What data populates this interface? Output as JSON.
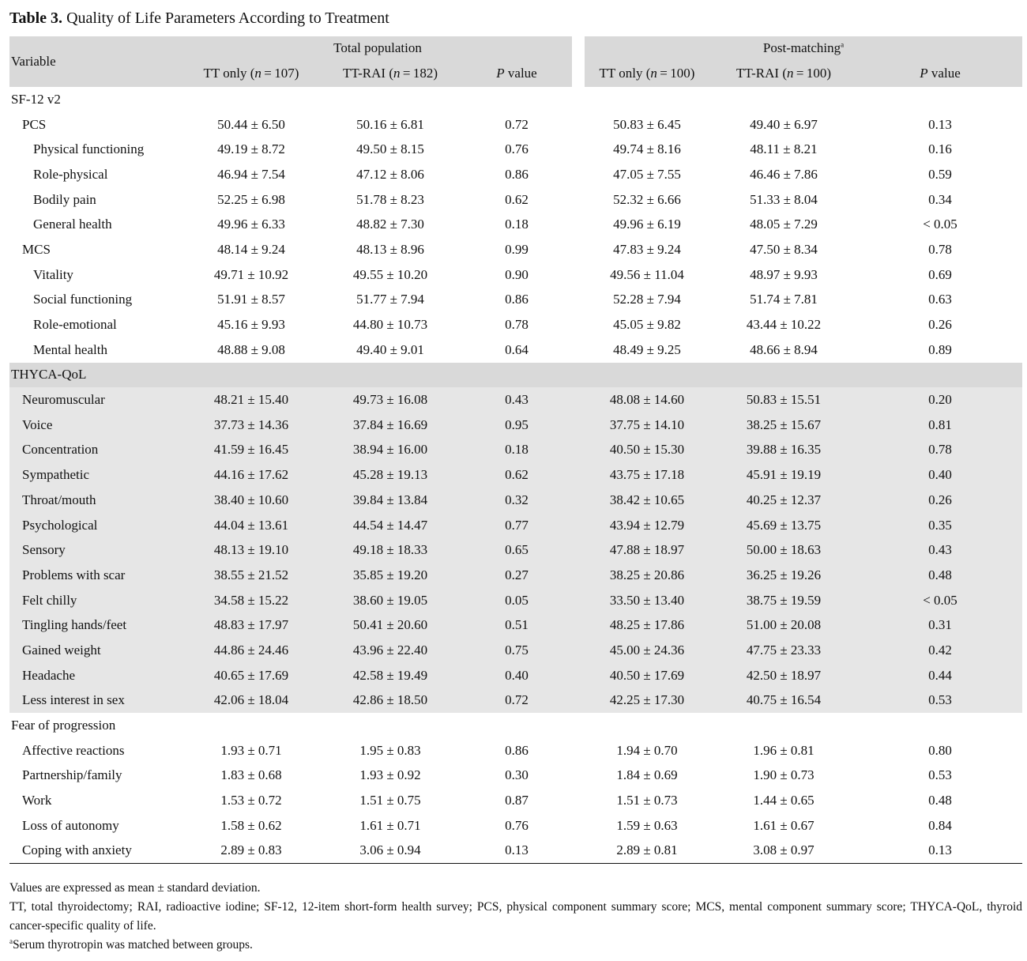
{
  "caption": {
    "label": "Table 3.",
    "title": "Quality of Life Parameters According to Treatment"
  },
  "header": {
    "variable": "Variable",
    "group1": "Total population",
    "group2": "Post-matching",
    "group2_mark": "a",
    "cols": [
      "TT only (n=107)",
      "TT-RAI (n=182)",
      "P value",
      "TT only (n=100)",
      "TT-RAI (n=100)",
      "P value"
    ]
  },
  "rows": [
    {
      "label": "SF-12 v2",
      "level": "section",
      "shade": false,
      "values": [
        "",
        "",
        "",
        "",
        "",
        ""
      ]
    },
    {
      "label": "PCS",
      "level": "l1",
      "shade": false,
      "values": [
        "50.44 ± 6.50",
        "50.16 ± 6.81",
        "0.72",
        "50.83 ± 6.45",
        "49.40 ± 6.97",
        "0.13"
      ]
    },
    {
      "label": "Physical functioning",
      "level": "l2",
      "shade": false,
      "values": [
        "49.19 ± 8.72",
        "49.50 ± 8.15",
        "0.76",
        "49.74 ± 8.16",
        "48.11 ± 8.21",
        "0.16"
      ]
    },
    {
      "label": "Role-physical",
      "level": "l2",
      "shade": false,
      "values": [
        "46.94 ± 7.54",
        "47.12 ± 8.06",
        "0.86",
        "47.05 ± 7.55",
        "46.46 ± 7.86",
        "0.59"
      ]
    },
    {
      "label": "Bodily pain",
      "level": "l2",
      "shade": false,
      "values": [
        "52.25 ± 6.98",
        "51.78 ± 8.23",
        "0.62",
        "52.32 ± 6.66",
        "51.33 ± 8.04",
        "0.34"
      ]
    },
    {
      "label": "General health",
      "level": "l2",
      "shade": false,
      "values": [
        "49.96 ± 6.33",
        "48.82 ± 7.30",
        "0.18",
        "49.96 ± 6.19",
        "48.05 ± 7.29",
        "< 0.05"
      ]
    },
    {
      "label": "MCS",
      "level": "l1",
      "shade": false,
      "values": [
        "48.14 ± 9.24",
        "48.13 ± 8.96",
        "0.99",
        "47.83 ± 9.24",
        "47.50 ± 8.34",
        "0.78"
      ]
    },
    {
      "label": "Vitality",
      "level": "l2",
      "shade": false,
      "values": [
        "49.71 ± 10.92",
        "49.55 ± 10.20",
        "0.90",
        "49.56 ± 11.04",
        "48.97 ± 9.93",
        "0.69"
      ]
    },
    {
      "label": "Social functioning",
      "level": "l2",
      "shade": false,
      "values": [
        "51.91 ± 8.57",
        "51.77 ± 7.94",
        "0.86",
        "52.28 ± 7.94",
        "51.74 ± 7.81",
        "0.63"
      ]
    },
    {
      "label": "Role-emotional",
      "level": "l2",
      "shade": false,
      "values": [
        "45.16 ± 9.93",
        "44.80 ± 10.73",
        "0.78",
        "45.05 ± 9.82",
        "43.44 ± 10.22",
        "0.26"
      ]
    },
    {
      "label": "Mental health",
      "level": "l2",
      "shade": false,
      "values": [
        "48.88 ± 9.08",
        "49.40 ± 9.01",
        "0.64",
        "48.49 ± 9.25",
        "48.66 ± 8.94",
        "0.89"
      ]
    },
    {
      "label": "THYCA-QoL",
      "level": "section",
      "shade": "section",
      "values": [
        "",
        "",
        "",
        "",
        "",
        ""
      ]
    },
    {
      "label": "Neuromuscular",
      "level": "l1",
      "shade": true,
      "values": [
        "48.21 ± 15.40",
        "49.73 ± 16.08",
        "0.43",
        "48.08 ± 14.60",
        "50.83 ± 15.51",
        "0.20"
      ]
    },
    {
      "label": "Voice",
      "level": "l1",
      "shade": true,
      "values": [
        "37.73 ± 14.36",
        "37.84 ± 16.69",
        "0.95",
        "37.75 ± 14.10",
        "38.25 ± 15.67",
        "0.81"
      ]
    },
    {
      "label": "Concentration",
      "level": "l1",
      "shade": true,
      "values": [
        "41.59 ± 16.45",
        "38.94 ± 16.00",
        "0.18",
        "40.50 ± 15.30",
        "39.88 ± 16.35",
        "0.78"
      ]
    },
    {
      "label": "Sympathetic",
      "level": "l1",
      "shade": true,
      "values": [
        "44.16 ± 17.62",
        "45.28 ± 19.13",
        "0.62",
        "43.75 ± 17.18",
        "45.91 ± 19.19",
        "0.40"
      ]
    },
    {
      "label": "Throat/mouth",
      "level": "l1",
      "shade": true,
      "values": [
        "38.40 ± 10.60",
        "39.84 ± 13.84",
        "0.32",
        "38.42 ± 10.65",
        "40.25 ± 12.37",
        "0.26"
      ]
    },
    {
      "label": "Psychological",
      "level": "l1",
      "shade": true,
      "values": [
        "44.04 ± 13.61",
        "44.54 ± 14.47",
        "0.77",
        "43.94 ± 12.79",
        "45.69 ± 13.75",
        "0.35"
      ]
    },
    {
      "label": "Sensory",
      "level": "l1",
      "shade": true,
      "values": [
        "48.13 ± 19.10",
        "49.18 ± 18.33",
        "0.65",
        "47.88 ± 18.97",
        "50.00 ± 18.63",
        "0.43"
      ]
    },
    {
      "label": "Problems with scar",
      "level": "l1",
      "shade": true,
      "values": [
        "38.55 ± 21.52",
        "35.85 ± 19.20",
        "0.27",
        "38.25 ± 20.86",
        "36.25 ± 19.26",
        "0.48"
      ]
    },
    {
      "label": "Felt chilly",
      "level": "l1",
      "shade": true,
      "values": [
        "34.58 ± 15.22",
        "38.60 ± 19.05",
        "0.05",
        "33.50 ± 13.40",
        "38.75 ± 19.59",
        "< 0.05"
      ]
    },
    {
      "label": "Tingling hands/feet",
      "level": "l1",
      "shade": true,
      "values": [
        "48.83 ± 17.97",
        "50.41 ± 20.60",
        "0.51",
        "48.25 ± 17.86",
        "51.00 ± 20.08",
        "0.31"
      ]
    },
    {
      "label": "Gained weight",
      "level": "l1",
      "shade": true,
      "values": [
        "44.86 ± 24.46",
        "43.96 ± 22.40",
        "0.75",
        "45.00 ± 24.36",
        "47.75 ± 23.33",
        "0.42"
      ]
    },
    {
      "label": "Headache",
      "level": "l1",
      "shade": true,
      "values": [
        "40.65 ± 17.69",
        "42.58 ± 19.49",
        "0.40",
        "40.50 ± 17.69",
        "42.50 ± 18.97",
        "0.44"
      ]
    },
    {
      "label": "Less interest in sex",
      "level": "l1",
      "shade": true,
      "values": [
        "42.06 ± 18.04",
        "42.86 ± 18.50",
        "0.72",
        "42.25 ± 17.30",
        "40.75 ± 16.54",
        "0.53"
      ]
    },
    {
      "label": "Fear of progression",
      "level": "section",
      "shade": false,
      "values": [
        "",
        "",
        "",
        "",
        "",
        ""
      ]
    },
    {
      "label": "Affective reactions",
      "level": "l1",
      "shade": false,
      "values": [
        "1.93 ± 0.71",
        "1.95 ± 0.83",
        "0.86",
        "1.94 ± 0.70",
        "1.96 ± 0.81",
        "0.80"
      ]
    },
    {
      "label": "Partnership/family",
      "level": "l1",
      "shade": false,
      "values": [
        "1.83 ± 0.68",
        "1.93 ± 0.92",
        "0.30",
        "1.84 ± 0.69",
        "1.90 ± 0.73",
        "0.53"
      ]
    },
    {
      "label": "Work",
      "level": "l1",
      "shade": false,
      "values": [
        "1.53 ± 0.72",
        "1.51 ± 0.75",
        "0.87",
        "1.51 ± 0.73",
        "1.44 ± 0.65",
        "0.48"
      ]
    },
    {
      "label": "Loss of autonomy",
      "level": "l1",
      "shade": false,
      "values": [
        "1.58 ± 0.62",
        "1.61 ± 0.71",
        "0.76",
        "1.59 ± 0.63",
        "1.61 ± 0.67",
        "0.84"
      ]
    },
    {
      "label": "Coping with anxiety",
      "level": "l1",
      "shade": false,
      "values": [
        "2.89 ± 0.83",
        "3.06 ± 0.94",
        "0.13",
        "2.89 ± 0.81",
        "3.08 ± 0.97",
        "0.13"
      ]
    }
  ],
  "notes": {
    "line1": "Values are expressed as mean ± standard deviation.",
    "line2": "TT, total thyroidectomy; RAI, radioactive iodine; SF-12, 12-item short-form health survey; PCS, physical component summary score; MCS, mental component summary score; THYCA-QoL, thyroid cancer-specific quality of life.",
    "footnote_mark": "a",
    "footnote": "Serum thyrotropin was matched between groups."
  },
  "colors": {
    "header_bg": "#d9d9d9",
    "row_shade": "#e6e6e6"
  }
}
